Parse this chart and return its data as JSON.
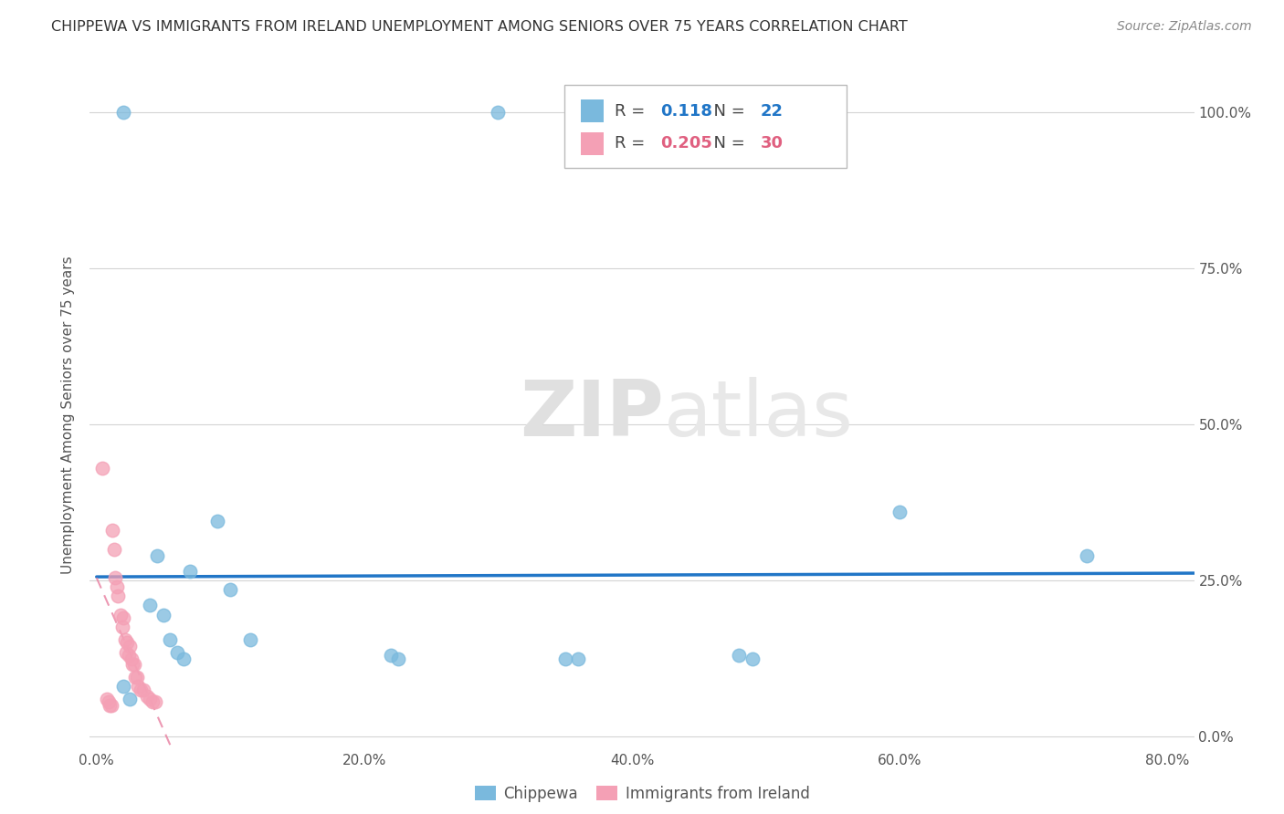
{
  "title": "CHIPPEWA VS IMMIGRANTS FROM IRELAND UNEMPLOYMENT AMONG SENIORS OVER 75 YEARS CORRELATION CHART",
  "source": "Source: ZipAtlas.com",
  "ylabel": "Unemployment Among Seniors over 75 years",
  "xlabel_ticks": [
    "0.0%",
    "",
    "20.0%",
    "",
    "40.0%",
    "",
    "60.0%",
    "",
    "80.0%"
  ],
  "xlabel_vals": [
    0.0,
    0.1,
    0.2,
    0.3,
    0.4,
    0.5,
    0.6,
    0.7,
    0.8
  ],
  "ylabel_ticks_right": [
    "0.0%",
    "25.0%",
    "50.0%",
    "75.0%",
    "100.0%"
  ],
  "ylabel_vals": [
    0.0,
    0.25,
    0.5,
    0.75,
    1.0
  ],
  "xlim": [
    -0.005,
    0.82
  ],
  "ylim": [
    -0.02,
    1.05
  ],
  "chippewa_R": 0.118,
  "chippewa_N": 22,
  "ireland_R": 0.205,
  "ireland_N": 30,
  "chippewa_color": "#7ab9dd",
  "ireland_color": "#f4a0b5",
  "trendline_chippewa_color": "#2176c7",
  "trendline_ireland_color": "#e87fa0",
  "watermark_zip": "ZIP",
  "watermark_atlas": "atlas",
  "background_color": "#ffffff",
  "grid_color": "#d0d0d0",
  "chippewa_x": [
    0.02,
    0.3,
    0.045,
    0.07,
    0.04,
    0.05,
    0.055,
    0.06,
    0.065,
    0.09,
    0.1,
    0.115,
    0.22,
    0.225,
    0.35,
    0.36,
    0.48,
    0.49,
    0.6,
    0.74,
    0.02,
    0.025
  ],
  "chippewa_y": [
    1.0,
    1.0,
    0.29,
    0.265,
    0.21,
    0.195,
    0.155,
    0.135,
    0.125,
    0.345,
    0.235,
    0.155,
    0.13,
    0.125,
    0.125,
    0.125,
    0.13,
    0.125,
    0.36,
    0.29,
    0.08,
    0.06
  ],
  "ireland_x": [
    0.004,
    0.008,
    0.009,
    0.01,
    0.011,
    0.012,
    0.013,
    0.014,
    0.015,
    0.016,
    0.018,
    0.019,
    0.02,
    0.021,
    0.022,
    0.023,
    0.024,
    0.025,
    0.026,
    0.027,
    0.028,
    0.029,
    0.03,
    0.031,
    0.033,
    0.035,
    0.038,
    0.04,
    0.042,
    0.044
  ],
  "ireland_y": [
    0.43,
    0.06,
    0.055,
    0.05,
    0.05,
    0.33,
    0.3,
    0.255,
    0.24,
    0.225,
    0.195,
    0.175,
    0.19,
    0.155,
    0.135,
    0.15,
    0.13,
    0.145,
    0.125,
    0.115,
    0.115,
    0.095,
    0.095,
    0.08,
    0.075,
    0.075,
    0.065,
    0.06,
    0.055,
    0.055
  ]
}
